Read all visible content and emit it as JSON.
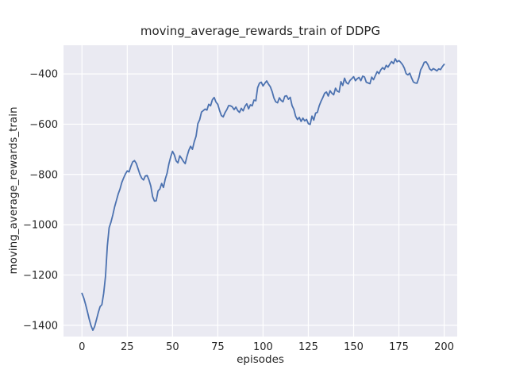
{
  "figure": {
    "background": "#ffffff"
  },
  "chart_data": {
    "type": "line",
    "title": "moving_average_rewards_train of DDPG",
    "xlabel": "episodes",
    "ylabel": "moving_average_rewards_train",
    "xlim": [
      -10.2,
      207.2
    ],
    "ylim": [
      -1445,
      -286
    ],
    "grid": true,
    "legend_position": "none",
    "plot_bg_color": "#eaeaf2",
    "grid_color": "#ffffff",
    "line_color": "#4c72b0",
    "text_color": "#262626",
    "x_ticks": {
      "values": [
        0,
        25,
        50,
        75,
        100,
        125,
        150,
        175,
        200
      ],
      "labels": [
        "0",
        "25",
        "50",
        "75",
        "100",
        "125",
        "150",
        "175",
        "200"
      ]
    },
    "y_ticks": {
      "values": [
        -400,
        -600,
        -800,
        -1000,
        -1200,
        -1400
      ],
      "labels": [
        "−400",
        "−600",
        "−800",
        "−1000",
        "−1200",
        "−1400"
      ]
    },
    "series": [
      {
        "name": "moving_average_rewards_train",
        "x": [
          0,
          1,
          2,
          3,
          4,
          5,
          6,
          7,
          8,
          9,
          10,
          11,
          12,
          13,
          14,
          15,
          16,
          17,
          18,
          19,
          20,
          21,
          22,
          23,
          24,
          25,
          26,
          27,
          28,
          29,
          30,
          31,
          32,
          33,
          34,
          35,
          36,
          37,
          38,
          39,
          40,
          41,
          42,
          43,
          44,
          45,
          46,
          47,
          48,
          49,
          50,
          51,
          52,
          53,
          54,
          55,
          56,
          57,
          58,
          59,
          60,
          61,
          62,
          63,
          64,
          65,
          66,
          67,
          68,
          69,
          70,
          71,
          72,
          73,
          74,
          75,
          76,
          77,
          78,
          79,
          80,
          81,
          82,
          83,
          84,
          85,
          86,
          87,
          88,
          89,
          90,
          91,
          92,
          93,
          94,
          95,
          96,
          97,
          98,
          99,
          100,
          101,
          102,
          103,
          104,
          105,
          106,
          107,
          108,
          109,
          110,
          111,
          112,
          113,
          114,
          115,
          116,
          117,
          118,
          119,
          120,
          121,
          122,
          123,
          124,
          125,
          126,
          127,
          128,
          129,
          130,
          131,
          132,
          133,
          134,
          135,
          136,
          137,
          138,
          139,
          140,
          141,
          142,
          143,
          144,
          145,
          146,
          147,
          148,
          149,
          150,
          151,
          152,
          153,
          154,
          155,
          156,
          157,
          158,
          159,
          160,
          161,
          162,
          163,
          164,
          165,
          166,
          167,
          168,
          169,
          170,
          171,
          172,
          173,
          174,
          175,
          176,
          177,
          178,
          179,
          180,
          181,
          182,
          183,
          184,
          185,
          186,
          187,
          188,
          189,
          190,
          191,
          192,
          193,
          194,
          195,
          196,
          197,
          198,
          199,
          200
        ],
        "y": [
          -1273,
          -1292,
          -1317,
          -1346,
          -1376,
          -1402,
          -1420,
          -1405,
          -1378,
          -1350,
          -1326,
          -1318,
          -1272,
          -1205,
          -1085,
          -1012,
          -990,
          -962,
          -930,
          -904,
          -878,
          -858,
          -832,
          -814,
          -798,
          -786,
          -790,
          -768,
          -750,
          -745,
          -756,
          -778,
          -800,
          -815,
          -822,
          -806,
          -804,
          -822,
          -846,
          -888,
          -906,
          -905,
          -866,
          -858,
          -836,
          -852,
          -818,
          -795,
          -758,
          -730,
          -708,
          -722,
          -746,
          -754,
          -726,
          -736,
          -748,
          -757,
          -728,
          -704,
          -688,
          -700,
          -670,
          -648,
          -598,
          -582,
          -552,
          -546,
          -540,
          -544,
          -521,
          -527,
          -503,
          -494,
          -512,
          -521,
          -546,
          -566,
          -571,
          -554,
          -542,
          -526,
          -527,
          -531,
          -542,
          -532,
          -546,
          -553,
          -537,
          -547,
          -529,
          -519,
          -539,
          -523,
          -527,
          -504,
          -507,
          -455,
          -437,
          -433,
          -448,
          -437,
          -428,
          -441,
          -451,
          -470,
          -496,
          -511,
          -515,
          -495,
          -506,
          -511,
          -489,
          -487,
          -501,
          -493,
          -526,
          -541,
          -569,
          -582,
          -573,
          -589,
          -576,
          -587,
          -581,
          -598,
          -601,
          -568,
          -584,
          -556,
          -553,
          -527,
          -509,
          -494,
          -477,
          -472,
          -488,
          -467,
          -477,
          -483,
          -457,
          -469,
          -472,
          -431,
          -446,
          -417,
          -435,
          -440,
          -426,
          -419,
          -411,
          -427,
          -419,
          -414,
          -427,
          -409,
          -412,
          -433,
          -436,
          -439,
          -413,
          -423,
          -407,
          -391,
          -399,
          -384,
          -375,
          -382,
          -366,
          -373,
          -361,
          -351,
          -359,
          -340,
          -352,
          -347,
          -354,
          -363,
          -377,
          -399,
          -404,
          -397,
          -416,
          -432,
          -436,
          -437,
          -416,
          -384,
          -371,
          -354,
          -352,
          -363,
          -380,
          -386,
          -379,
          -383,
          -388,
          -380,
          -383,
          -371,
          -362
        ]
      }
    ]
  }
}
